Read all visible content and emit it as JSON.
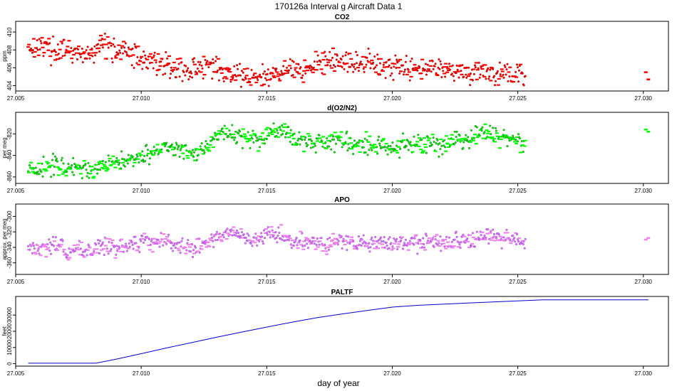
{
  "title": "170126a   Interval g Aircraft Data 1",
  "xlabel": "day of year",
  "chart_data": [
    {
      "type": "scatter",
      "title": "CO2",
      "ylabel": "ppm",
      "color": "#ff0000",
      "edge_color": "#a00000",
      "xlim": [
        27.005,
        27.031
      ],
      "ylim": [
        403.4,
        411.2
      ],
      "xticks": [
        27.005,
        27.01,
        27.015,
        27.02,
        27.025,
        27.03
      ],
      "xtick_labels": [
        "27.005",
        "27.010",
        "27.015",
        "27.020",
        "27.025",
        "27.030"
      ],
      "yticks": [
        404,
        406,
        408,
        410
      ],
      "ytick_labels": [
        "404",
        "406",
        "408",
        "410"
      ],
      "x": [
        27.0055,
        27.006,
        27.0065,
        27.007,
        27.0075,
        27.008,
        27.0085,
        27.009,
        27.0095,
        27.01,
        27.0105,
        27.011,
        27.0115,
        27.012,
        27.0125,
        27.013,
        27.0135,
        27.014,
        27.0145,
        27.015,
        27.0155,
        27.016,
        27.0165,
        27.017,
        27.0175,
        27.018,
        27.0185,
        27.019,
        27.0195,
        27.02,
        27.0205,
        27.021,
        27.0215,
        27.022,
        27.0225,
        27.023,
        27.0235,
        27.024,
        27.0245,
        27.025,
        27.0253,
        27.0301,
        27.0302
      ],
      "y": [
        408.3,
        408.5,
        407.9,
        407.8,
        407.5,
        407.3,
        408.8,
        408.0,
        407.6,
        407.2,
        406.8,
        406.2,
        406.0,
        405.6,
        406.3,
        405.9,
        405.4,
        405.1,
        404.8,
        405.0,
        405.6,
        406.0,
        405.7,
        406.2,
        406.8,
        406.5,
        406.3,
        406.7,
        406.4,
        406.1,
        406.2,
        405.9,
        406.4,
        405.8,
        405.9,
        405.4,
        405.8,
        405.3,
        405.5,
        405.2,
        405.0,
        405.5,
        404.7
      ],
      "spread": 1.4
    },
    {
      "type": "scatter",
      "title": "d(O2/N2)",
      "ylabel": "per meg",
      "color": "#00ff00",
      "edge_color": "#006400",
      "xlim": [
        27.005,
        27.031
      ],
      "ylim": [
        -866,
        -800
      ],
      "xticks": [
        27.005,
        27.01,
        27.015,
        27.02,
        27.025,
        27.03
      ],
      "xtick_labels": [
        "27.005",
        "27.010",
        "27.015",
        "27.020",
        "27.025",
        "27.030"
      ],
      "yticks": [
        -860,
        -840,
        -820
      ],
      "ytick_labels": [
        "-860",
        "-840",
        "-820"
      ],
      "x": [
        27.0055,
        27.006,
        27.0065,
        27.007,
        27.0075,
        27.008,
        27.0085,
        27.009,
        27.0095,
        27.01,
        27.0105,
        27.011,
        27.0115,
        27.012,
        27.0125,
        27.013,
        27.0135,
        27.014,
        27.0145,
        27.015,
        27.0155,
        27.016,
        27.0165,
        27.017,
        27.0175,
        27.018,
        27.0185,
        27.019,
        27.0195,
        27.02,
        27.0205,
        27.021,
        27.0215,
        27.022,
        27.0225,
        27.023,
        27.0235,
        27.024,
        27.0245,
        27.025,
        27.0253,
        27.0301,
        27.0302
      ],
      "y": [
        -851,
        -853,
        -848,
        -852,
        -853,
        -852,
        -850,
        -847,
        -845,
        -840,
        -836,
        -830,
        -834,
        -840,
        -834,
        -822,
        -818,
        -822,
        -826,
        -820,
        -816,
        -824,
        -828,
        -826,
        -829,
        -826,
        -828,
        -831,
        -829,
        -832,
        -829,
        -830,
        -828,
        -832,
        -826,
        -824,
        -822,
        -820,
        -824,
        -826,
        -828,
        -816,
        -818
      ],
      "spread": 10
    },
    {
      "type": "scatter",
      "title": "APO",
      "ylabel": "approx. per meg",
      "color": "#ee82ee",
      "edge_color": "#8a2be2",
      "xlim": [
        27.005,
        27.031
      ],
      "ylim": [
        -375,
        -284
      ],
      "xticks": [
        27.005,
        27.01,
        27.015,
        27.02,
        27.025,
        27.03
      ],
      "xtick_labels": [
        "27.005",
        "27.010",
        "27.015",
        "27.020",
        "27.025",
        "27.030"
      ],
      "yticks": [
        -360,
        -340,
        -320,
        -300
      ],
      "ytick_labels": [
        "-360",
        "-340",
        "-320",
        "-300"
      ],
      "x": [
        27.0055,
        27.006,
        27.0065,
        27.007,
        27.0075,
        27.008,
        27.0085,
        27.009,
        27.0095,
        27.01,
        27.0105,
        27.011,
        27.0115,
        27.012,
        27.0125,
        27.013,
        27.0135,
        27.014,
        27.0145,
        27.015,
        27.0155,
        27.016,
        27.0165,
        27.017,
        27.0175,
        27.018,
        27.0185,
        27.019,
        27.0195,
        27.02,
        27.0205,
        27.021,
        27.0215,
        27.022,
        27.0225,
        27.023,
        27.0235,
        27.024,
        27.0245,
        27.025,
        27.0253,
        27.0301,
        27.0302
      ],
      "y": [
        -340,
        -342,
        -336,
        -345,
        -344,
        -348,
        -338,
        -340,
        -338,
        -334,
        -333,
        -328,
        -336,
        -342,
        -334,
        -326,
        -322,
        -326,
        -330,
        -324,
        -322,
        -332,
        -334,
        -334,
        -336,
        -330,
        -334,
        -336,
        -334,
        -334,
        -332,
        -335,
        -333,
        -334,
        -331,
        -330,
        -327,
        -326,
        -328,
        -331,
        -333,
        -330,
        -328
      ],
      "spread": 12
    },
    {
      "type": "line",
      "title": "PALTF",
      "ylabel": "feet",
      "color": "#0000cc",
      "xlim": [
        27.005,
        27.031
      ],
      "ylim": [
        -1500,
        41500
      ],
      "xticks": [
        27.005,
        27.01,
        27.015,
        27.02,
        27.025,
        27.03
      ],
      "xtick_labels": [
        "27.005",
        "27.010",
        "27.015",
        "27.020",
        "27.025",
        "27.030"
      ],
      "yticks": [
        0,
        10000,
        20000,
        30000
      ],
      "ytick_labels": [
        "0",
        "10000",
        "20000",
        "30000"
      ],
      "x": [
        27.0055,
        27.0082,
        27.009,
        27.01,
        27.011,
        27.012,
        27.013,
        27.014,
        27.015,
        27.016,
        27.017,
        27.018,
        27.019,
        27.02,
        27.0205,
        27.021,
        27.022,
        27.023,
        27.024,
        27.025,
        27.026,
        27.027,
        27.028,
        27.029,
        27.0302
      ],
      "y": [
        300,
        300,
        2800,
        6200,
        9700,
        13000,
        16300,
        19500,
        22600,
        25600,
        28400,
        30700,
        32800,
        34900,
        35500,
        36000,
        36700,
        37400,
        38100,
        38800,
        39400,
        39400,
        39400,
        39400,
        39400
      ]
    }
  ]
}
